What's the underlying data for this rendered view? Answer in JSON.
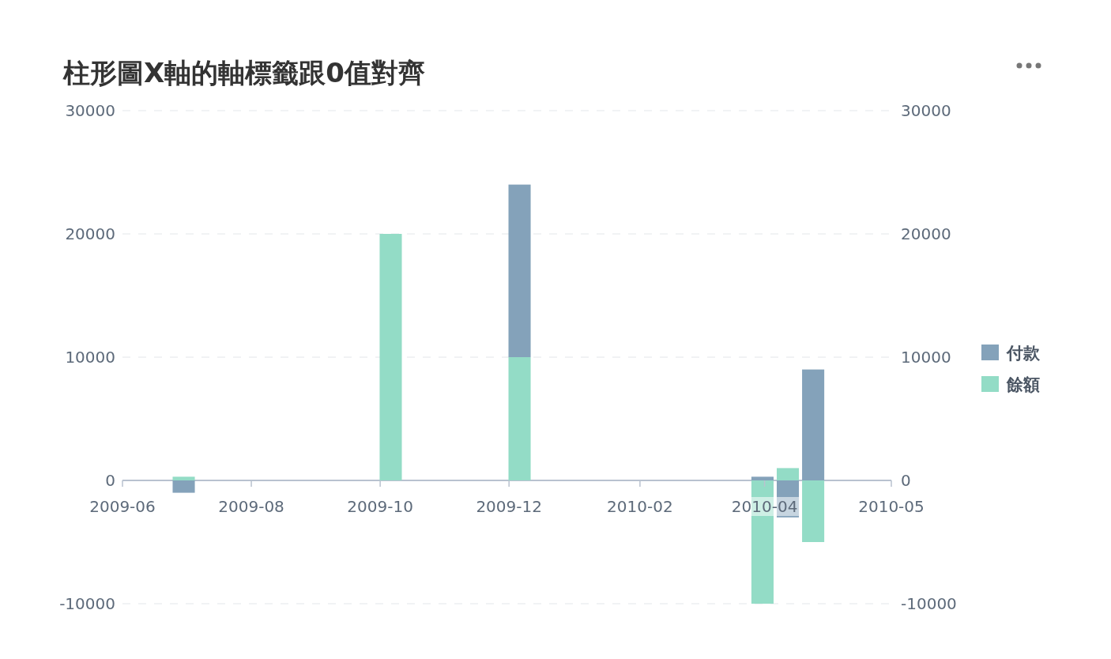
{
  "chart_data": {
    "type": "bar",
    "title": "柱形圖X軸的軸標籤跟0值對齊",
    "stacked": true,
    "x": [
      "2009-06-30",
      "2009-10-06",
      "2009-12-06",
      "2010-03-31",
      "2010-04-12",
      "2010-04-24"
    ],
    "series": [
      {
        "name": "餘額",
        "color": "#93dcc6",
        "values": [
          300,
          20000,
          10000,
          -10000,
          1000,
          -5000
        ]
      },
      {
        "name": "付款",
        "color": "#84a2ba",
        "values": [
          -1000,
          null,
          14000,
          300,
          -3000,
          9000
        ]
      }
    ],
    "xlim": [
      "2009-06-01",
      "2010-05-31"
    ],
    "xticks": [
      {
        "value": "2009-06-01",
        "label": "2009-06"
      },
      {
        "value": "2009-08-01",
        "label": "2009-08"
      },
      {
        "value": "2009-10-01",
        "label": "2009-10"
      },
      {
        "value": "2009-12-01",
        "label": "2009-12"
      },
      {
        "value": "2010-02-01",
        "label": "2010-02"
      },
      {
        "value": "2010-04-01",
        "label": "2010-04"
      },
      {
        "value": "2010-05-31",
        "label": "2010-05"
      }
    ],
    "ylim": [
      -10000,
      30000
    ],
    "yticks": [
      -10000,
      0,
      10000,
      20000,
      30000
    ],
    "y2lim": [
      -10000,
      30000
    ],
    "y2ticks": [
      -10000,
      0,
      10000,
      20000,
      30000
    ],
    "grid": "y",
    "legend": "right"
  }
}
